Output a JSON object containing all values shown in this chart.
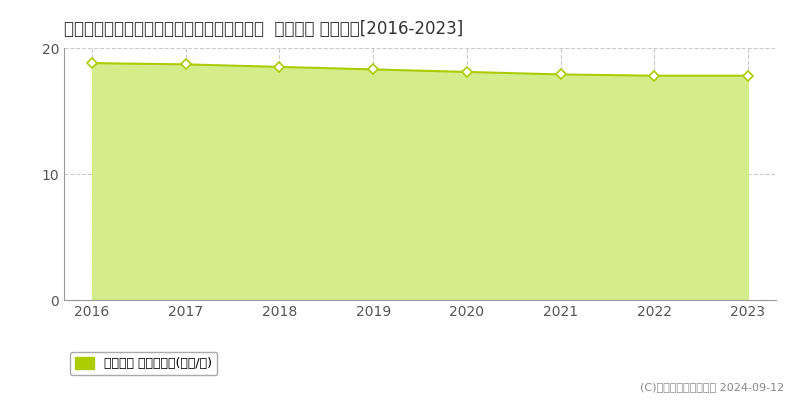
{
  "title": "奈良県桜井市大字三輪元馬場方３９２番１外  地価公示 地価推移[2016-2023]",
  "years": [
    2016,
    2017,
    2018,
    2019,
    2020,
    2021,
    2022,
    2023
  ],
  "values": [
    18.8,
    18.7,
    18.5,
    18.3,
    18.1,
    17.9,
    17.8,
    17.8
  ],
  "ylim": [
    0,
    20
  ],
  "yticks": [
    0,
    10,
    20
  ],
  "line_color": "#aacc00",
  "fill_color": "#d4ed8a",
  "marker_color": "#ffffff",
  "marker_edge_color": "#aacc00",
  "grid_color": "#cccccc",
  "bg_color": "#ffffff",
  "plot_bg_color": "#ffffff",
  "legend_label": "地価公示 平均坪単価(万円/坪)",
  "legend_square_color": "#aacc00",
  "copyright_text": "(C)土地価格ドットコム 2024-09-12",
  "title_fontsize": 12,
  "axis_fontsize": 10,
  "legend_fontsize": 9
}
